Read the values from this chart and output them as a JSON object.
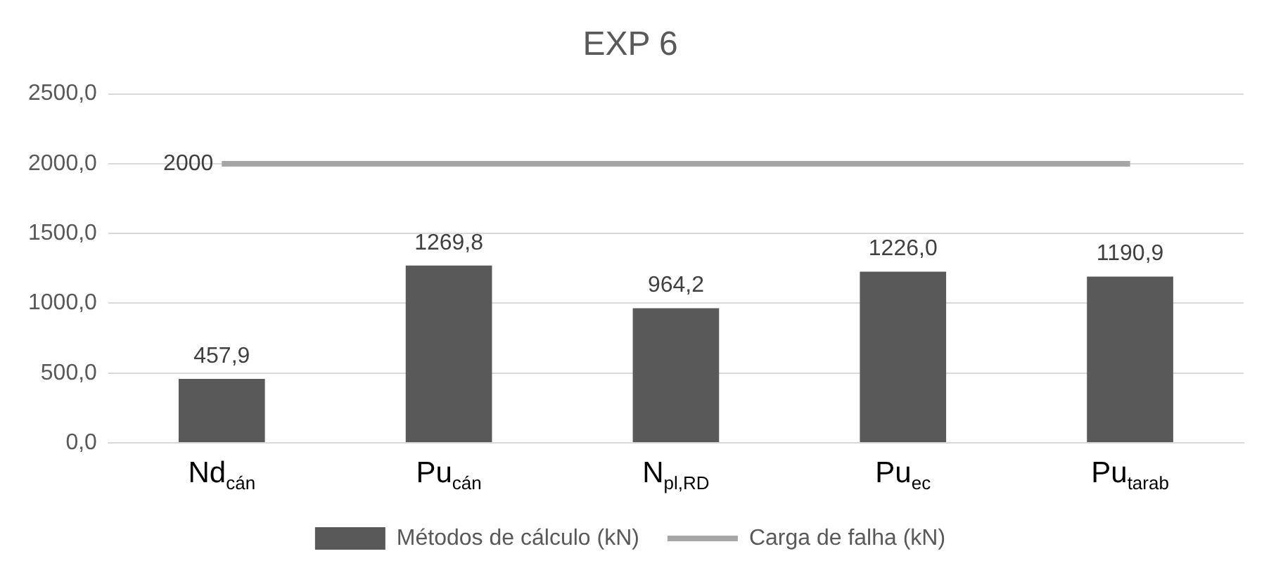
{
  "chart_data": {
    "type": "bar",
    "title": "EXP 6",
    "categories": [
      "Nd$_{cán}$",
      "Pu$_{cán}$",
      "N$_{pl,RD}$",
      "Pu$_{ec}$",
      "Pu$_{tarab}$"
    ],
    "series": [
      {
        "name": "Métodos de cálculo (kN)",
        "color": "#595959",
        "values": [
          457.9,
          1269.8,
          964.2,
          1226.0,
          1190.9
        ],
        "value_labels": [
          "457,9",
          "1269,8",
          "964,2",
          "1226,0",
          "1190,9"
        ]
      },
      {
        "name": "Carga de falha (kN)",
        "type": "line",
        "color": "#a6a6a6",
        "values": [
          2000,
          2000,
          2000,
          2000,
          2000
        ],
        "value_labels": [
          "2000",
          null,
          null,
          null,
          null
        ]
      }
    ],
    "ylim": [
      0,
      2500
    ],
    "yticks": [
      {
        "value": 0,
        "label": "0,0"
      },
      {
        "value": 500,
        "label": "500,0"
      },
      {
        "value": 1000,
        "label": "1000,0"
      },
      {
        "value": 1500,
        "label": "1500,0"
      },
      {
        "value": 2000,
        "label": "2000,0"
      },
      {
        "value": 2500,
        "label": "2500,0"
      }
    ],
    "grid": "y",
    "legend": "bottom",
    "marker": "none"
  }
}
